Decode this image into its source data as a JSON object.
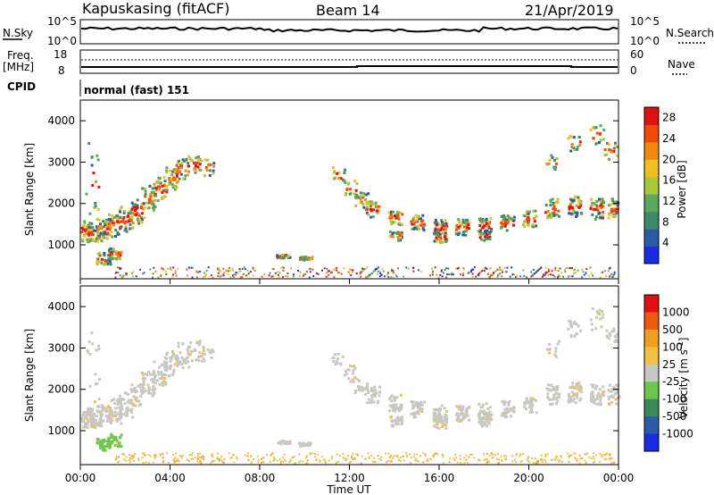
{
  "header": {
    "station": "Kapuskasing (fitACF)",
    "beam": "Beam 14",
    "date": "21/Apr/2019"
  },
  "top_panel": {
    "left_label": "N.Sky",
    "left_ticks": [
      "10^5",
      "10^0"
    ],
    "right_ticks": [
      "10^5",
      "10^0"
    ],
    "right_label": "N.Search"
  },
  "freq_panel": {
    "left_label_line1": "Freq.",
    "left_label_line2": "[MHz]",
    "left_ticks": [
      "18",
      "8"
    ],
    "right_ticks": [
      "60",
      "0"
    ],
    "right_label": "Nave"
  },
  "cpid_panel": {
    "label": "CPID",
    "mode": "normal (fast) 151"
  },
  "colors": {
    "power_scale": [
      "#1a2be6",
      "#2a5aa8",
      "#3f8a6a",
      "#5aa85a",
      "#a8c83a",
      "#f0c020",
      "#f08a10",
      "#f04a08",
      "#e01010"
    ],
    "velocity_scale": [
      "#e01010",
      "#f05a10",
      "#f0a020",
      "#f0c040",
      "#c8c8c0",
      "#6ac84a",
      "#3a8a5a",
      "#2a5aa8",
      "#1a2be6"
    ]
  },
  "chart_data": [
    {
      "type": "heatmap",
      "name": "power",
      "ylabel": "Slant Range [km]",
      "y_ticks": [
        "1000",
        "2000",
        "3000",
        "4000"
      ],
      "ylim": [
        180,
        4500
      ],
      "colorbar_label": "Power [dB]",
      "colorbar_ticks": [
        "4",
        "8",
        "12",
        "16",
        "20",
        "24",
        "28"
      ],
      "colorbar_range": [
        0,
        30
      ]
    },
    {
      "type": "heatmap",
      "name": "velocity",
      "ylabel": "Slant Range [km]",
      "y_ticks": [
        "1000",
        "2000",
        "3000",
        "4000"
      ],
      "ylim": [
        180,
        4500
      ],
      "colorbar_label": "Velocity [m s^-1]",
      "colorbar_ticks": [
        "1000",
        "500",
        "100",
        "25",
        "-25",
        "-100",
        "-500",
        "-1000"
      ]
    }
  ],
  "x_axis": {
    "label": "Time UT",
    "ticks": [
      "00:00",
      "04:00",
      "08:00",
      "12:00",
      "16:00",
      "20:00",
      "00:00"
    ]
  }
}
